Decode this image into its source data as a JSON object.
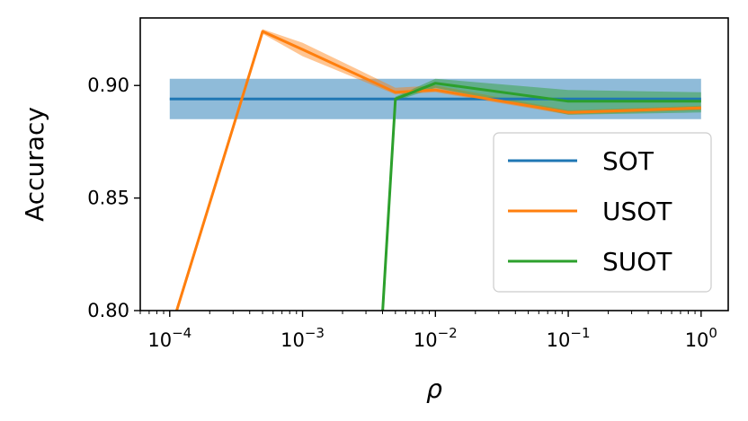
{
  "chart_data": {
    "type": "line",
    "title": "",
    "xlabel": "ρ",
    "ylabel": "Accuracy",
    "xscale": "log",
    "xlim": [
      6e-05,
      1.6
    ],
    "ylim": [
      0.8,
      0.93
    ],
    "x_ticks": [
      {
        "value": 0.0001,
        "base": "10",
        "exp": "−4"
      },
      {
        "value": 0.001,
        "base": "10",
        "exp": "−3"
      },
      {
        "value": 0.01,
        "base": "10",
        "exp": "−2"
      },
      {
        "value": 0.1,
        "base": "10",
        "exp": "−1"
      },
      {
        "value": 1,
        "base": "10",
        "exp": "0"
      }
    ],
    "y_ticks": [
      {
        "value": 0.8,
        "label": "0.80"
      },
      {
        "value": 0.85,
        "label": "0.85"
      },
      {
        "value": 0.9,
        "label": "0.90"
      }
    ],
    "grid": false,
    "legend_position": "lower-right",
    "series": [
      {
        "name": "SOT",
        "color": "#1f77b4",
        "x": [
          0.0001,
          1
        ],
        "y": [
          0.894,
          0.894
        ],
        "lower": [
          0.885,
          0.885
        ],
        "upper": [
          0.903,
          0.903
        ]
      },
      {
        "name": "USOT",
        "color": "#ff7f0e",
        "x": [
          0.0001,
          0.0005,
          0.001,
          0.005,
          0.01,
          0.1,
          1
        ],
        "y": [
          0.79,
          0.924,
          0.916,
          0.897,
          0.898,
          0.888,
          0.89
        ],
        "lower": [
          0.788,
          0.923,
          0.913,
          0.896,
          0.897,
          0.887,
          0.889
        ],
        "upper": [
          0.792,
          0.925,
          0.919,
          0.899,
          0.9,
          0.889,
          0.891
        ]
      },
      {
        "name": "SUOT",
        "color": "#2ca02c",
        "x": [
          0.004,
          0.005,
          0.01,
          0.1,
          1
        ],
        "y": [
          0.799,
          0.894,
          0.901,
          0.893,
          0.893
        ],
        "lower": [
          0.799,
          0.893,
          0.899,
          0.887,
          0.888
        ],
        "upper": [
          0.799,
          0.895,
          0.903,
          0.898,
          0.897
        ]
      }
    ]
  }
}
